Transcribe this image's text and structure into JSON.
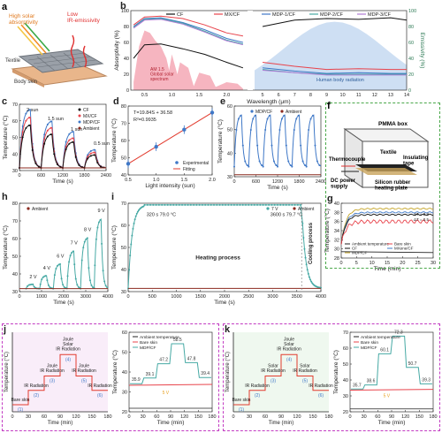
{
  "colors": {
    "cf": "#111111",
    "mxcf": "#e8434b",
    "mdp1": "#3f78c7",
    "mdp2": "#46a9a4",
    "mdp3": "#b07bd6",
    "ambient": "#8b2a1f",
    "solar": "#f4a3b0",
    "body_rad": "#c9dcf2",
    "box_green": "#4aa84a",
    "box_magenta": "#c23bc2",
    "fit": "#e23b2e"
  },
  "panel_a": {
    "label": "a",
    "texts": {
      "high_solar": "High solar\nabsorptivity",
      "low_ir": "Low\nIR-emissivity",
      "textile": "Textile",
      "body_skin": "Body skin"
    }
  },
  "panel_f": {
    "label": "f",
    "texts": {
      "pmma": "PMMA box",
      "textile": "Textile",
      "thermocouple": "Thermocouple",
      "insulating": "Insulating\ntape",
      "dc": "DC power\nsupply",
      "silicon": "Silicon rubber\nheating plate"
    }
  },
  "chart_data": [
    {
      "id": "b",
      "type": "line",
      "xlabel": "Wavelength (μm)",
      "ylabel": "Absorptivity (%)",
      "y2label": "Emissivity (%)",
      "legend": [
        "CF",
        "MX/CF",
        "MDP-1/CF",
        "MDP-2/CF",
        "MDP-3/CF"
      ],
      "x_left_ticks": [
        "0.5",
        "1.0",
        "1.5",
        "2.0"
      ],
      "x_right_ticks": [
        "5",
        "6",
        "7",
        "8",
        "9",
        "10",
        "11",
        "12",
        "13",
        "14"
      ],
      "y_ticks": [
        "0",
        "20",
        "40",
        "60",
        "80",
        "100"
      ],
      "y2_ticks": [
        "0",
        "20",
        "40",
        "60",
        "80",
        "100"
      ],
      "annotations": {
        "solar": "AM 1.5\nGlobal solar\nspectrum",
        "body": "Human body radiation"
      },
      "series_vis": [
        {
          "name": "CF",
          "values": [
            [
              0.3,
              40
            ],
            [
              0.5,
              57
            ],
            [
              0.8,
              58
            ],
            [
              1.2,
              52
            ],
            [
              1.6,
              45
            ],
            [
              2.0,
              35
            ],
            [
              2.3,
              28
            ]
          ]
        },
        {
          "name": "MX/CF",
          "values": [
            [
              0.3,
              82
            ],
            [
              0.5,
              92
            ],
            [
              0.8,
              93
            ],
            [
              1.2,
              90
            ],
            [
              1.6,
              82
            ],
            [
              2.0,
              72
            ],
            [
              2.3,
              68
            ]
          ]
        },
        {
          "name": "MDP-1/CF",
          "values": [
            [
              0.3,
              80
            ],
            [
              0.5,
              90
            ],
            [
              0.8,
              91
            ],
            [
              1.2,
              85
            ],
            [
              1.6,
              76
            ],
            [
              2.0,
              65
            ],
            [
              2.3,
              60
            ]
          ]
        },
        {
          "name": "MDP-2/CF",
          "values": [
            [
              0.3,
              79
            ],
            [
              0.5,
              89
            ],
            [
              0.8,
              90
            ],
            [
              1.2,
              84
            ],
            [
              1.6,
              74
            ],
            [
              2.0,
              63
            ],
            [
              2.3,
              58
            ]
          ]
        },
        {
          "name": "MDP-3/CF",
          "values": [
            [
              0.3,
              78
            ],
            [
              0.5,
              88
            ],
            [
              0.8,
              89
            ],
            [
              1.2,
              83
            ],
            [
              1.6,
              73
            ],
            [
              2.0,
              62
            ],
            [
              2.3,
              57
            ]
          ]
        }
      ],
      "series_ir": [
        {
          "name": "CF",
          "values": [
            [
              5,
              80
            ],
            [
              7,
              88
            ],
            [
              9,
              90
            ],
            [
              11,
              89
            ],
            [
              13,
              91
            ],
            [
              14,
              88
            ]
          ]
        },
        {
          "name": "MX/CF",
          "values": [
            [
              5,
              35
            ],
            [
              7,
              30
            ],
            [
              9,
              26
            ],
            [
              11,
              27
            ],
            [
              13,
              26
            ],
            [
              14,
              26
            ]
          ]
        },
        {
          "name": "MDP-1/CF",
          "values": [
            [
              5,
              28
            ],
            [
              7,
              24
            ],
            [
              9,
              21
            ],
            [
              11,
              22
            ],
            [
              13,
              21
            ],
            [
              14,
              21
            ]
          ]
        },
        {
          "name": "MDP-2/CF",
          "values": [
            [
              5,
              26
            ],
            [
              7,
              22
            ],
            [
              9,
              20
            ],
            [
              11,
              20
            ],
            [
              13,
              20
            ],
            [
              14,
              20
            ]
          ]
        },
        {
          "name": "MDP-3/CF",
          "values": [
            [
              5,
              25
            ],
            [
              7,
              22
            ],
            [
              9,
              19
            ],
            [
              11,
              19
            ],
            [
              13,
              19
            ],
            [
              14,
              19
            ]
          ]
        }
      ]
    },
    {
      "id": "c",
      "type": "line",
      "xlabel": "Time (s)",
      "ylabel": "Temperature (°C)",
      "legend": [
        "CF",
        "MX/CF",
        "MDP/CF",
        "Ambient"
      ],
      "x_ticks": [
        "0",
        "600",
        "1200",
        "1800",
        "2400"
      ],
      "y_ticks": [
        "30",
        "40",
        "50",
        "60",
        "70"
      ],
      "annotations": [
        "2 sun",
        "1.5 sun",
        "1 sun",
        "0.5 sun"
      ],
      "series": [
        {
          "name": "MDP/CF",
          "peaks": [
            72,
            63,
            55,
            41
          ]
        },
        {
          "name": "MX/CF",
          "peaks": [
            66,
            58,
            50,
            39
          ]
        },
        {
          "name": "CF",
          "peaks": [
            60,
            53,
            47,
            37
          ]
        },
        {
          "name": "Ambient",
          "value": 27
        }
      ]
    },
    {
      "id": "d",
      "type": "scatter",
      "xlabel": "Light intensity (sun)",
      "ylabel": "Temperature (°C)",
      "equation": "T=19.84S + 36.58",
      "r2": "R²=0.9935",
      "legend": [
        "Experimental",
        "Fitting"
      ],
      "x": [
        0.5,
        1.0,
        1.5,
        2.0
      ],
      "y": [
        46.5,
        56.4,
        66.3,
        76.2
      ],
      "x_ticks": [
        "0.5",
        "1.0",
        "1.5",
        "2.0"
      ],
      "y_ticks": [
        "40",
        "50",
        "60",
        "70",
        "80"
      ]
    },
    {
      "id": "e",
      "type": "line",
      "xlabel": "Time (s)",
      "ylabel": "Temperature (°C)",
      "legend": [
        "MDP/CF",
        "Ambient"
      ],
      "x_ticks": [
        "0",
        "600",
        "1200",
        "1800",
        "2400"
      ],
      "y_ticks": [
        "30",
        "40",
        "50",
        "60"
      ],
      "cycles": 6,
      "peak": 56,
      "base": 30,
      "ambient": 26
    },
    {
      "id": "g",
      "type": "line",
      "xlabel": "Time (min)",
      "ylabel": "Temperature (°C)",
      "legend": [
        "Ambient temperature",
        "Bare skin",
        "CF",
        "MXene/CF",
        "MDP/CF"
      ],
      "x_ticks": [
        "0",
        "5",
        "10",
        "15",
        "20",
        "25",
        "30"
      ],
      "y_ticks": [
        "28",
        "30",
        "32",
        "34",
        "36",
        "38",
        "40"
      ],
      "deltas": [
        "ΔT = 2.8",
        "ΔT = 0.5"
      ]
    },
    {
      "id": "h",
      "type": "line",
      "xlabel": "Time (s)",
      "ylabel": "Temperature (°C)",
      "legend": [
        "Ambient"
      ],
      "x_ticks": [
        "0",
        "1000",
        "2000",
        "3000",
        "4000"
      ],
      "y_ticks": [
        "30",
        "40",
        "50",
        "60",
        "70",
        "80"
      ],
      "annotations": [
        "2 V",
        "4 V",
        "6 V",
        "7 V",
        "8 V",
        "9 V"
      ],
      "peaks": [
        30,
        36,
        44,
        53,
        62,
        75
      ]
    },
    {
      "id": "i",
      "type": "line",
      "xlabel": "Time (s)",
      "ylabel": "Temperature (°C)",
      "legend": [
        "7 V",
        "Ambient"
      ],
      "x_ticks": [
        "0",
        "500",
        "1000",
        "1500",
        "2000",
        "2500",
        "3000",
        "3500",
        "4000"
      ],
      "y_ticks": [
        "30",
        "40",
        "50",
        "60",
        "70"
      ],
      "annotations": [
        "320 s  79.0 °C",
        "3600 s  79.7 °C",
        "Heating process",
        "Cooling process"
      ]
    },
    {
      "id": "j",
      "type": "line",
      "xlabel": "Time (min)",
      "ylabel": "Temperature (°C)",
      "legend": [
        "Ambient temperature",
        "Bare skin",
        "MDP/CF"
      ],
      "x_ticks": [
        "0",
        "30",
        "60",
        "90",
        "120",
        "150",
        "180"
      ],
      "y_ticks": [
        "20",
        "30",
        "40",
        "50",
        "60"
      ],
      "values": [
        "35.9",
        "39.1",
        "47.2",
        "58.5",
        "47.8",
        "39.4"
      ],
      "voltage": "5 V"
    },
    {
      "id": "k",
      "type": "line",
      "xlabel": "Time (min)",
      "ylabel": "Temperature (°C)",
      "legend": [
        "Ambient temperature",
        "Bare skin",
        "MDP/CF"
      ],
      "x_ticks": [
        "0",
        "30",
        "60",
        "90",
        "120",
        "150",
        "180"
      ],
      "y_ticks": [
        "20",
        "30",
        "40",
        "50",
        "60",
        "70"
      ],
      "values": [
        "35.7",
        "38.6",
        "60.1",
        "72.3",
        "50.7",
        "39.3"
      ],
      "voltage": "5 V"
    }
  ],
  "stair_j": {
    "xlabel": "Time (min)",
    "ylabel": "Temperature (°C)",
    "x_ticks": [
      "0",
      "30",
      "60",
      "90",
      "120",
      "150",
      "180"
    ],
    "steps": [
      "Bare skin",
      "IR Radiation",
      "Joule\nIR Radiation",
      "Joule\nSolar\nIR Radiation",
      "Joule\nIR Radiation",
      "IR Radiation"
    ],
    "nums": [
      "(1)",
      "(2)",
      "(3)",
      "(4)",
      "(5)",
      "(6)"
    ]
  },
  "stair_k": {
    "xlabel": "Time (min)",
    "ylabel": "Temperature (°C)",
    "x_ticks": [
      "0",
      "30",
      "60",
      "90",
      "120",
      "150",
      "180"
    ],
    "steps": [
      "Bare skin",
      "IR Radiation",
      "Solar\nIR Radiation",
      "Joule\nSolar\nIR Radiation",
      "Solar\nIR Radiation",
      "IR Radiation"
    ],
    "nums": [
      "(1)",
      "(2)",
      "(3)",
      "(4)",
      "(5)",
      "(6)"
    ]
  }
}
